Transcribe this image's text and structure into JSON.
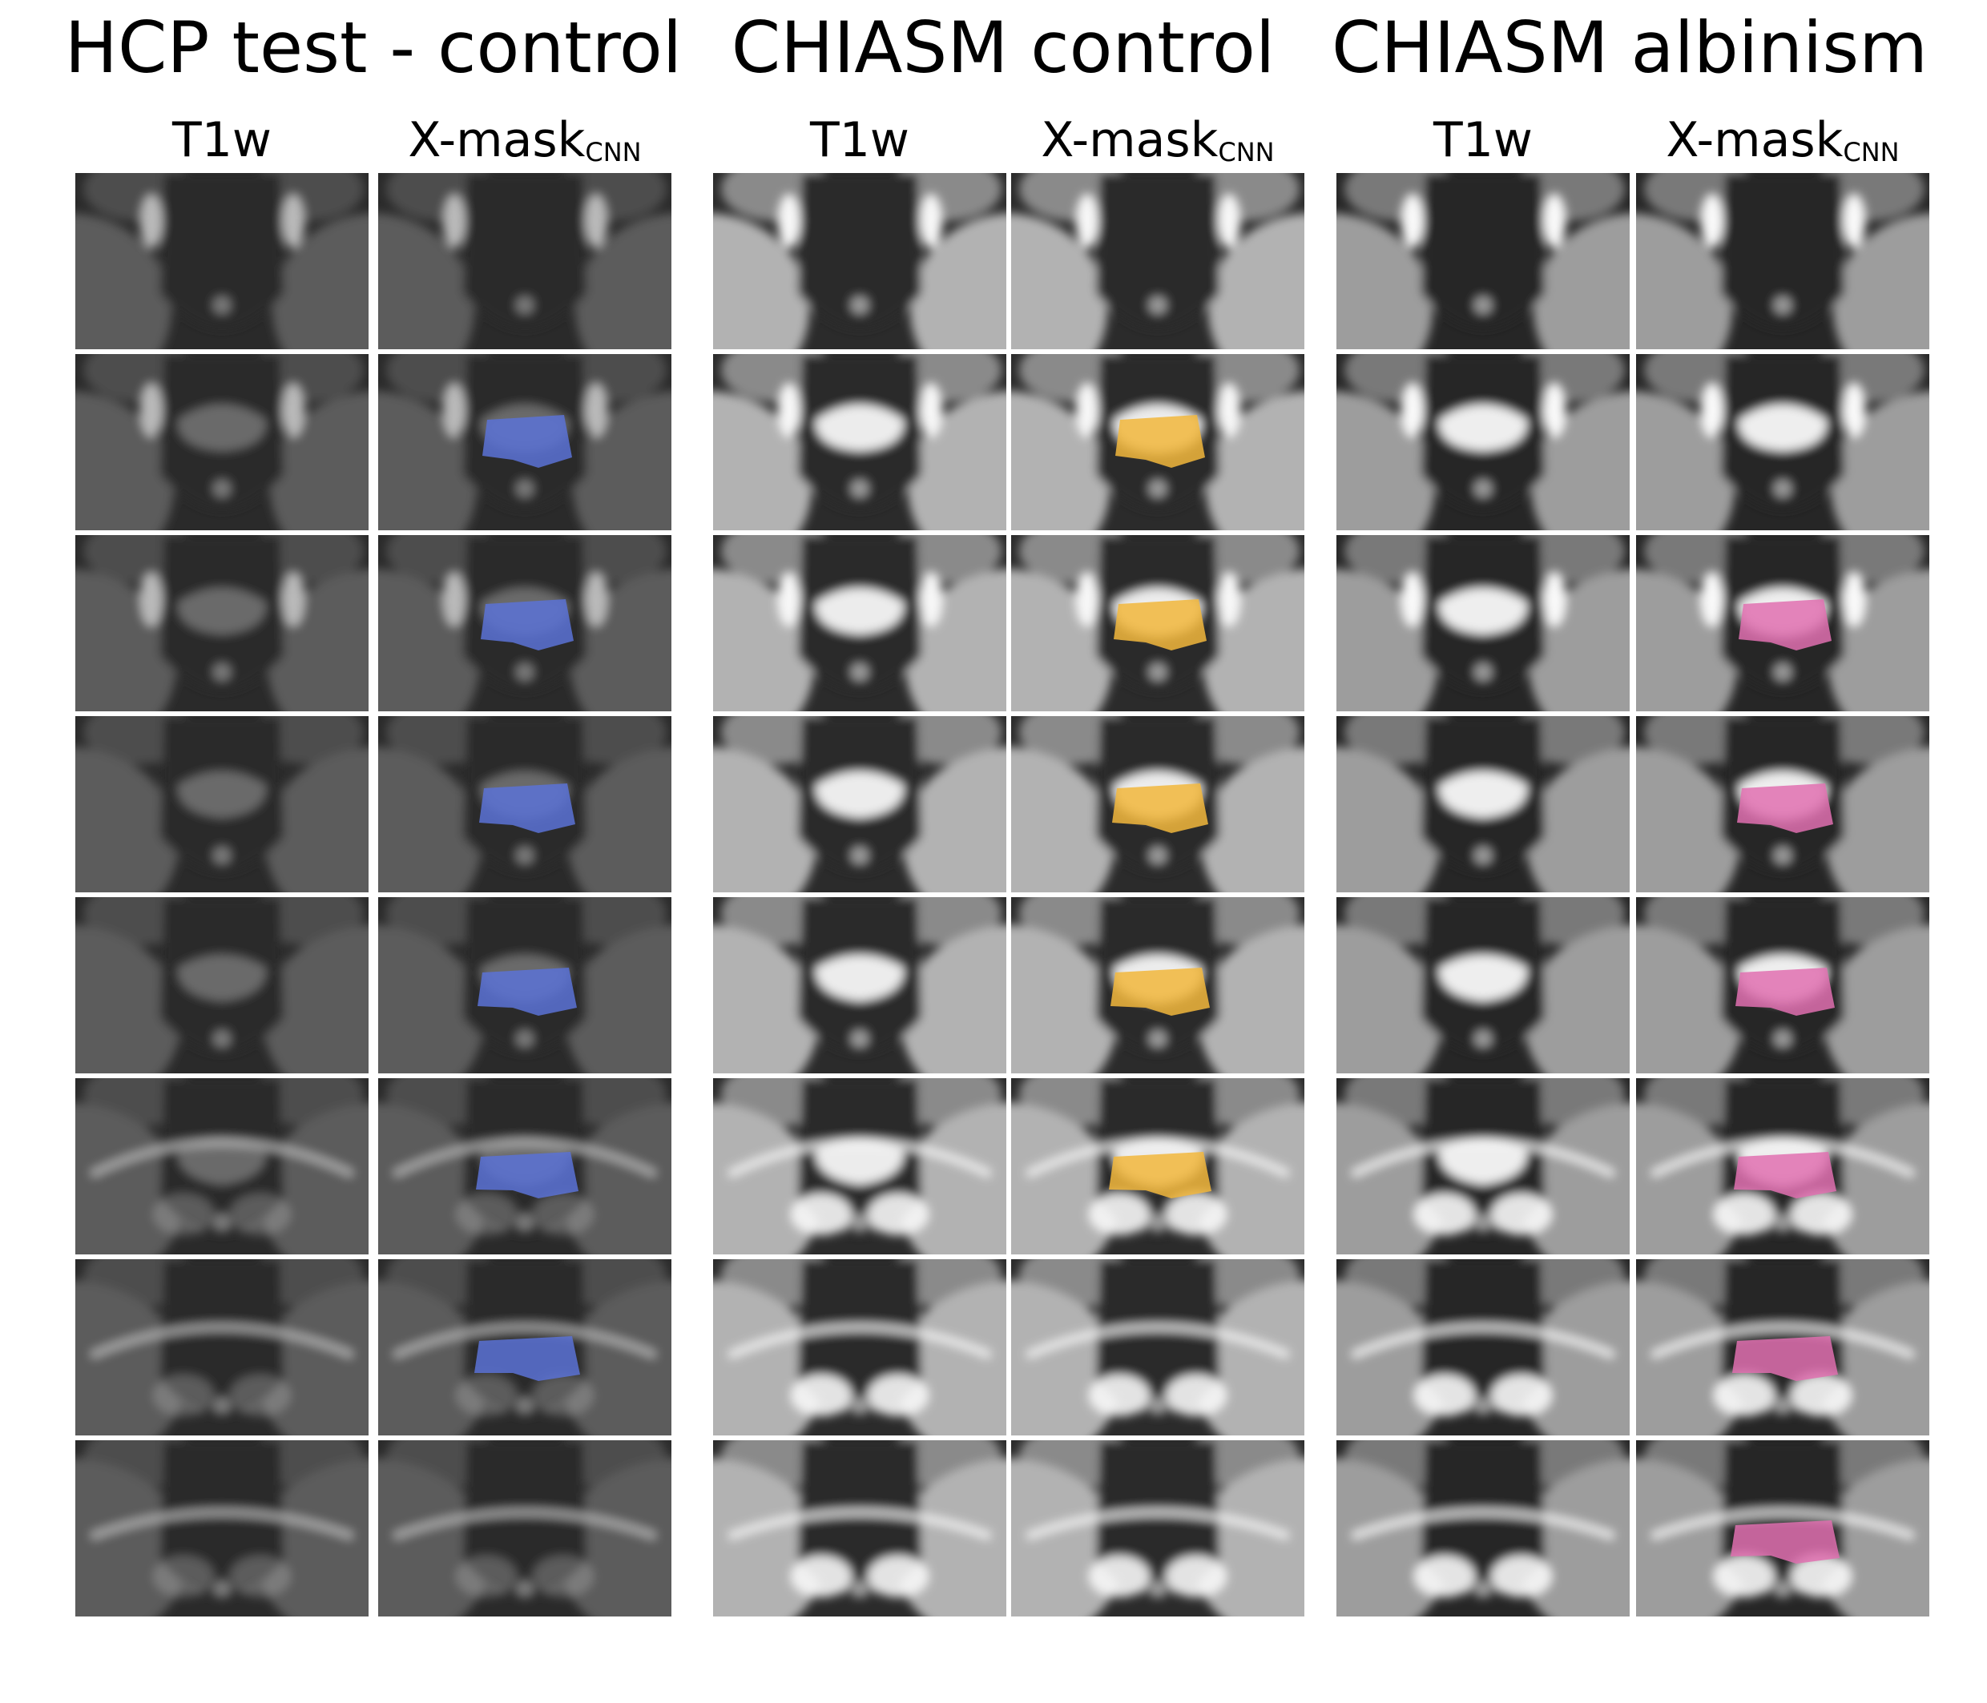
{
  "groups": [
    {
      "title": "HCP test - control",
      "columns": [
        {
          "label": "T1w",
          "mask": false
        },
        {
          "label_main": "X-mask",
          "label_sub": "CNN",
          "mask": true
        }
      ],
      "palette": {
        "bg": "#2a2a2a",
        "tissue": "#5b5b5b",
        "bright": "#b9b9b9",
        "mask": "#5a72d6"
      },
      "mask_rows": [
        1,
        2,
        3,
        4,
        5,
        6
      ]
    },
    {
      "title": "CHIASM control",
      "columns": [
        {
          "label": "T1w",
          "mask": false
        },
        {
          "label_main": "X-mask",
          "label_sub": "CNN",
          "mask": true
        }
      ],
      "palette": {
        "bg": "#2b2b2b",
        "tissue": "#b2b2b2",
        "bright": "#f7f7f7",
        "mask": "#f2b73c"
      },
      "mask_rows": [
        1,
        2,
        3,
        4,
        5
      ]
    },
    {
      "title": "CHIASM albinism",
      "columns": [
        {
          "label": "T1w",
          "mask": false
        },
        {
          "label_main": "X-mask",
          "label_sub": "CNN",
          "mask": true
        }
      ],
      "palette": {
        "bg": "#262626",
        "tissue": "#9d9d9d",
        "bright": "#f9f9f9",
        "mask": "#e070b0"
      },
      "mask_rows": [
        2,
        3,
        4,
        5,
        6,
        7
      ]
    }
  ],
  "rows": 8
}
